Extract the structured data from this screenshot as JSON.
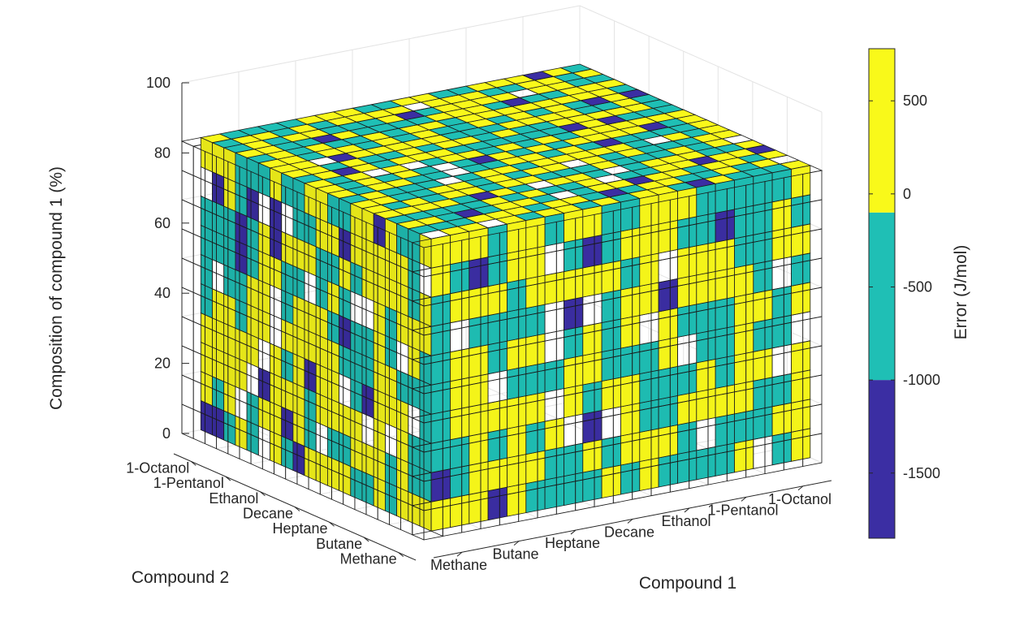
{
  "chart_data": {
    "type": "heatmap",
    "subtype": "3d-voxel",
    "title": "",
    "zlabel": "Composition of compound 1 (%)",
    "xlabel": "Compound 1",
    "ylabel": "Compound 2",
    "colorbar_label": "Error (J/mol)",
    "compounds": [
      "Methane",
      "Butane",
      "Heptane",
      "Decane",
      "Ethanol",
      "1-Pentanol",
      "1-Octanol"
    ],
    "z_ticks": [
      0,
      20,
      40,
      60,
      80,
      100
    ],
    "zlim": [
      0,
      100
    ],
    "grid": true,
    "colorbar": {
      "ticks": [
        500,
        0,
        -500,
        -1000,
        -1500
      ],
      "range": [
        -1850,
        780
      ],
      "bins": [
        {
          "from": -1850,
          "to": -1000,
          "color": "#3b2ea3"
        },
        {
          "from": -1000,
          "to": -100,
          "color": "#1fbfb5"
        },
        {
          "from": -100,
          "to": 780,
          "color": "#f9f91a"
        }
      ]
    },
    "note_visible_pattern": "Errors are mostly between -1000 and 780 J/mol; a few cells fall below -1000 J/mol."
  }
}
